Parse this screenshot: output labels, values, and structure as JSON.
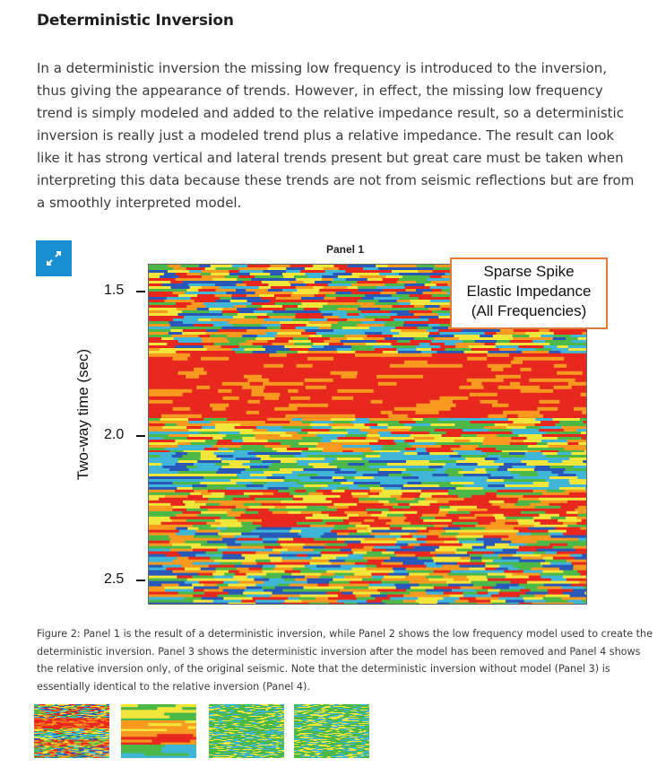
{
  "article": {
    "heading": "Deterministic Inversion",
    "paragraph": "In a deterministic inversion the missing low frequency is introduced to the inversion, thus giving the appearance of trends. However, in effect, the missing low frequency trend is simply modeled and added to the relative impedance result, so a deterministic inversion is really just a modeled trend plus a relative impedance. The result can look like it has strong vertical and lateral trends present but great care must be taken when interpreting this data because these trends are not from seismic reflections but are from a smoothly interpreted model."
  },
  "figure": {
    "expand_icon": "expand-arrows-icon",
    "panel_title": "Panel 1",
    "y_axis_label": "Two-way time (sec)",
    "ticks": [
      "1.5",
      "2.0",
      "2.5"
    ],
    "legend_lines": [
      "Sparse Spike",
      "Elastic Impedance",
      "(All Frequencies)"
    ],
    "caption": "Figure 2: Panel 1 is the result of a deterministic inversion, while Panel 2 shows the low frequency model used to create the deterministic inversion. Panel 3 shows the deterministic inversion after the model has been removed and Panel 4 shows the relative inversion only, of the original seismic. Note that the deterministic inversion without model (Panel 3) is essentially identical to the relative inversion (Panel 4).",
    "colors": {
      "accent": "#1a8fcf",
      "legend_border": "#e07b39",
      "red": "#e8281e",
      "orange": "#f79a1f",
      "yellow": "#f3e63a",
      "green": "#4cb848",
      "cyan": "#3fb6d8",
      "blue": "#2a58b8"
    }
  }
}
